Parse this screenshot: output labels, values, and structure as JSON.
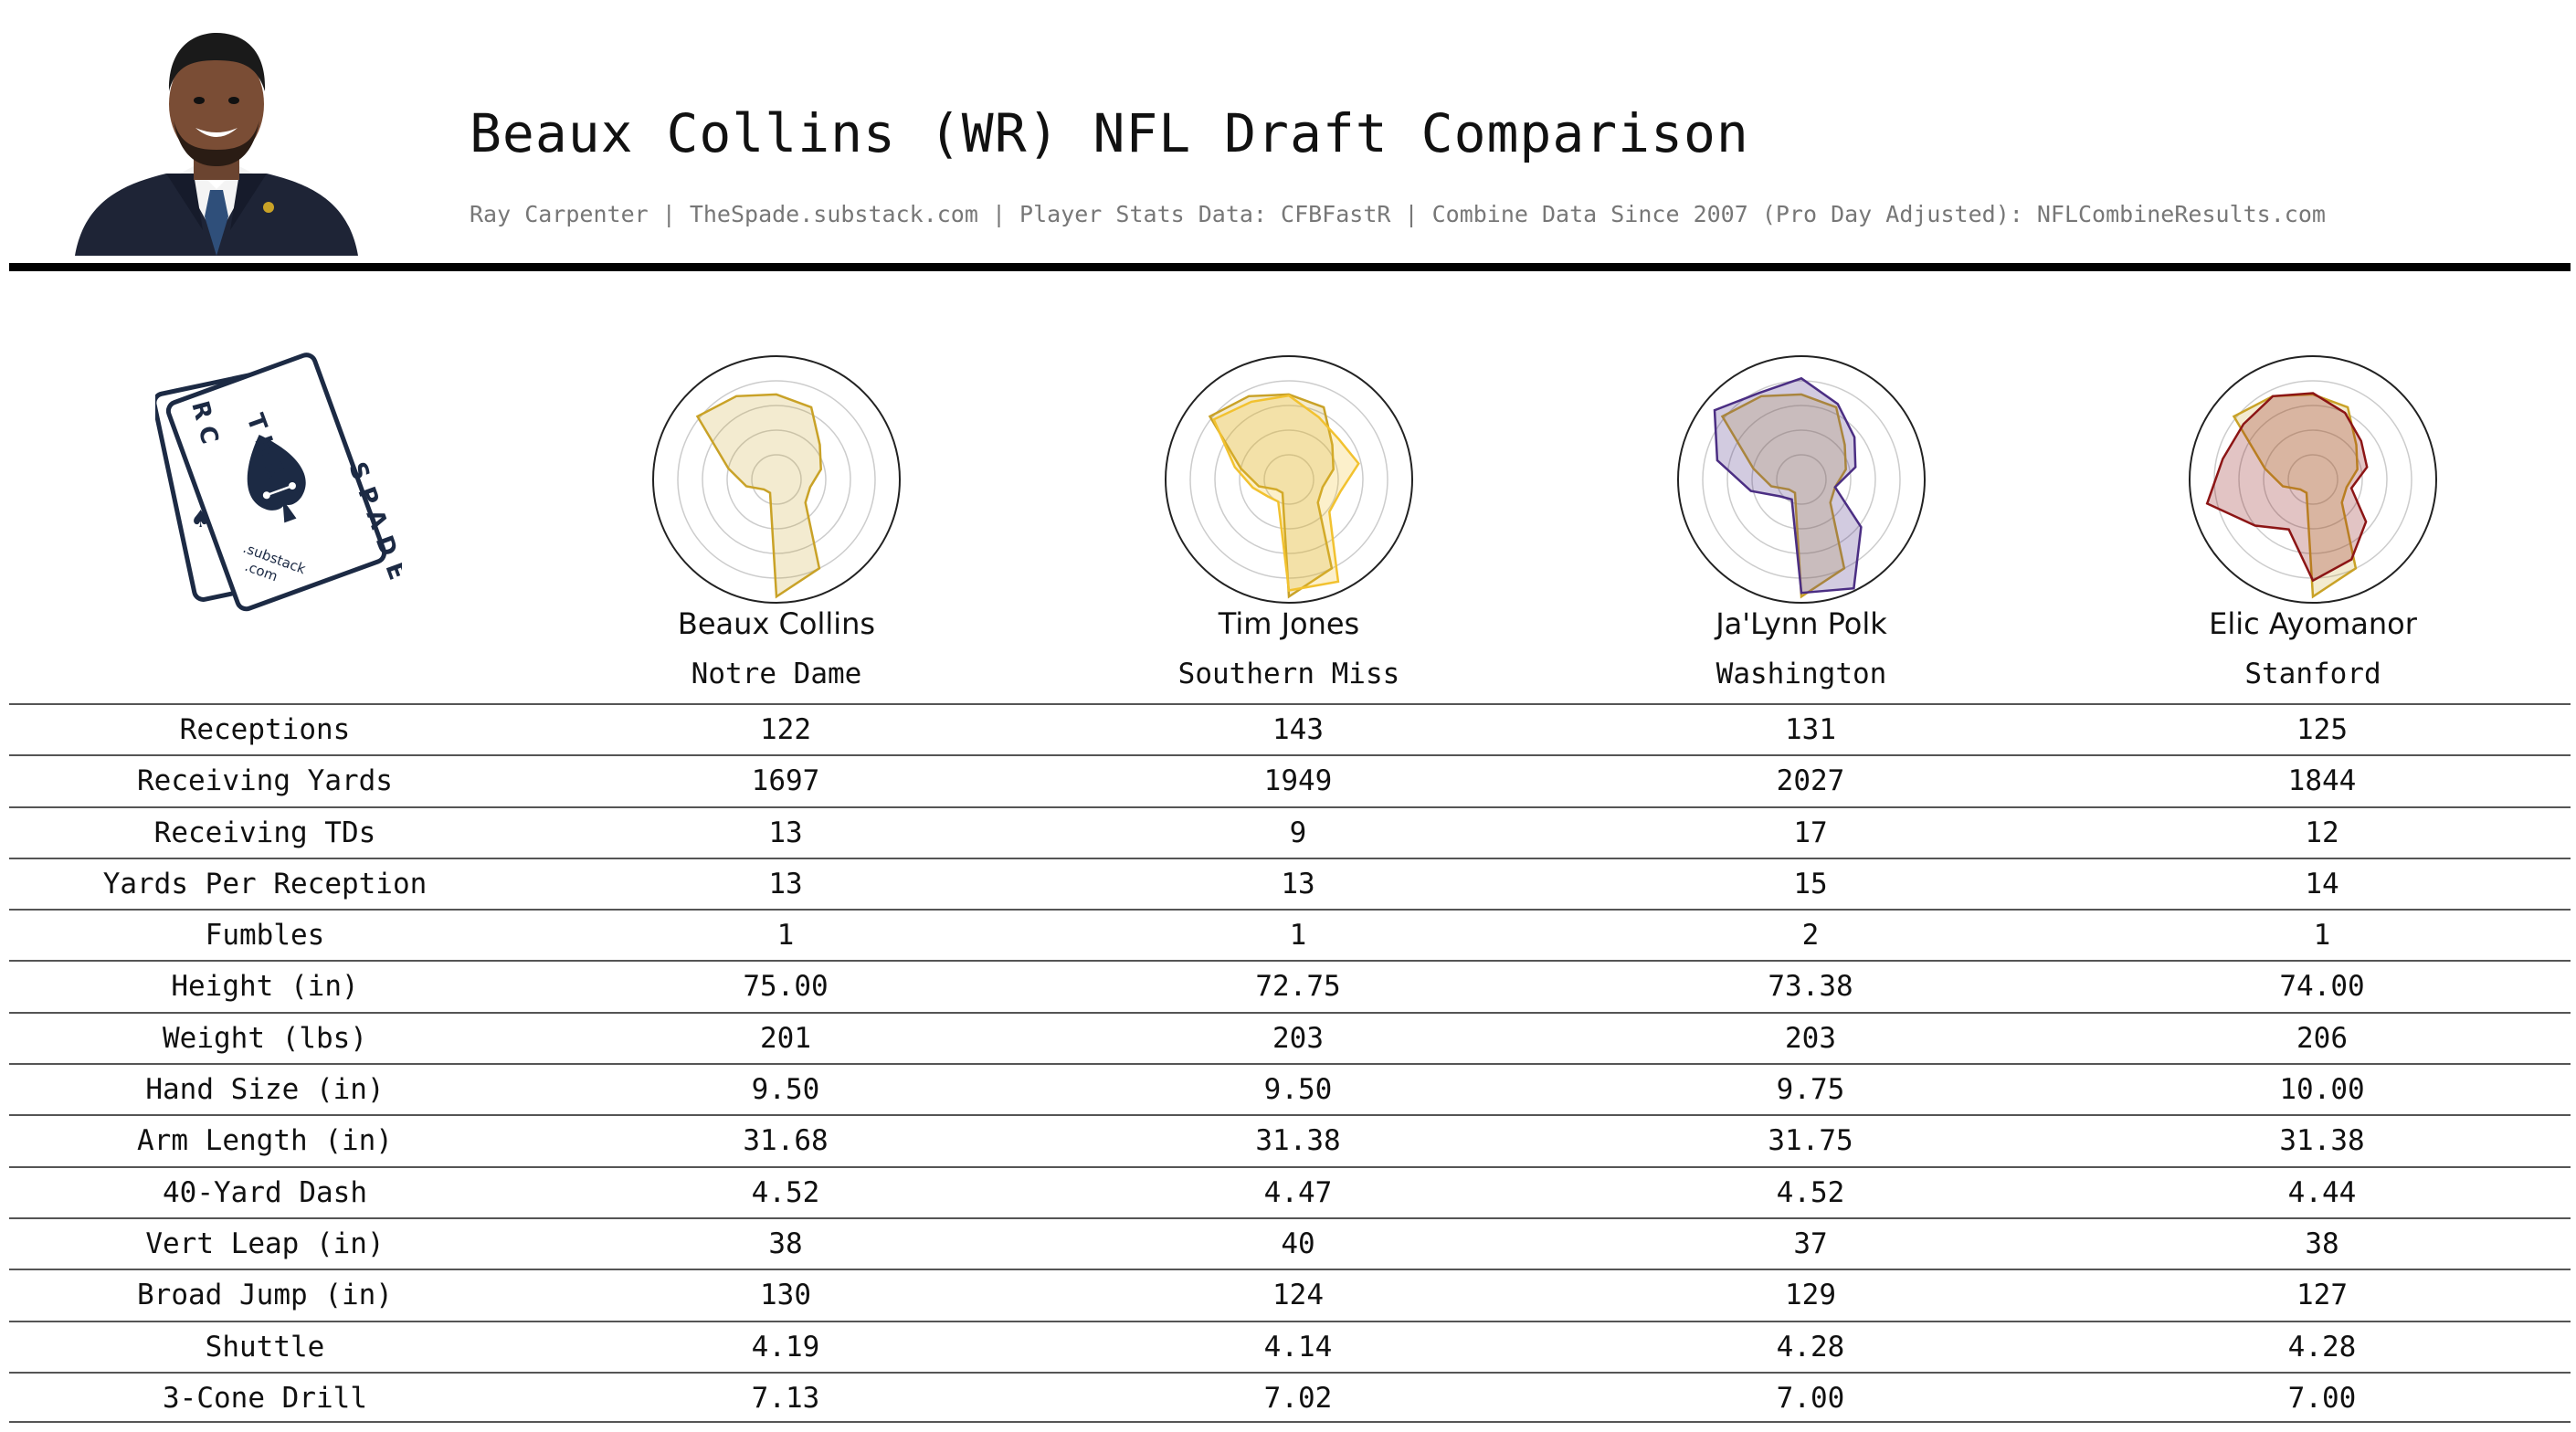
{
  "header": {
    "title": "Beaux Collins (WR) NFL Draft Comparison",
    "subtitle": "Ray Carpenter | TheSpade.substack.com | Player Stats Data: CFBFastR | Combine Data Since 2007 (Pro Day Adjusted): NFLCombineResults.com",
    "photo_icon": "player-headshot-icon"
  },
  "logo": {
    "icon": "spade-cards-logo-icon",
    "text_top": "THE",
    "text_left": "RC",
    "text_right": "SPADE",
    "text_small_1": ".substack",
    "text_small_2": ".com"
  },
  "colors": {
    "beaux": "#C9A227",
    "tim": "#F2C230",
    "jalynn": "#4B2E83",
    "elic": "#8C1515",
    "rule": "#000000"
  },
  "players": [
    {
      "name": "Beaux Collins",
      "school": "Notre Dame"
    },
    {
      "name": "Tim Jones",
      "school": "Southern Miss"
    },
    {
      "name": "Ja'Lynn Polk",
      "school": "Washington"
    },
    {
      "name": "Elic Ayomanor",
      "school": "Stanford"
    }
  ],
  "chart_data": {
    "type": "radar",
    "axes": 14,
    "rlim": [
      0,
      1
    ],
    "rings": [
      0.2,
      0.4,
      0.6,
      0.8
    ],
    "base": {
      "name": "Beaux Collins",
      "values": [
        0.69,
        0.65,
        0.45,
        0.37,
        0.28,
        0.3,
        0.8,
        0.95,
        0.12,
        0.13,
        0.25,
        0.4,
        0.82,
        0.75
      ]
    },
    "comparisons": [
      {
        "name": "Beaux Collins",
        "color": "#C9A227",
        "values": [
          0.69,
          0.65,
          0.45,
          0.37,
          0.28,
          0.3,
          0.8,
          0.95,
          0.12,
          0.13,
          0.25,
          0.4,
          0.82,
          0.75
        ]
      },
      {
        "name": "Tim Jones",
        "color": "#F2C230",
        "values": [
          0.68,
          0.56,
          0.52,
          0.58,
          0.43,
          0.42,
          0.92,
          0.9,
          0.2,
          0.22,
          0.3,
          0.45,
          0.78,
          0.7
        ]
      },
      {
        "name": "Ja'Lynn Polk",
        "color": "#4B2E83",
        "values": [
          0.82,
          0.68,
          0.55,
          0.45,
          0.28,
          0.62,
          0.98,
          0.92,
          0.18,
          0.22,
          0.42,
          0.7,
          0.9,
          0.78
        ]
      },
      {
        "name": "Elic Ayomanor",
        "color": "#8C1515",
        "values": [
          0.7,
          0.6,
          0.5,
          0.45,
          0.32,
          0.55,
          0.72,
          0.82,
          0.45,
          0.6,
          0.88,
          0.75,
          0.72,
          0.75
        ]
      }
    ]
  },
  "table": {
    "rows": [
      {
        "label": "Receptions",
        "values": [
          "122",
          "143",
          "131",
          "125"
        ]
      },
      {
        "label": "Receiving Yards",
        "values": [
          "1697",
          "1949",
          "2027",
          "1844"
        ]
      },
      {
        "label": "Receiving TDs",
        "values": [
          "13",
          "9",
          "17",
          "12"
        ]
      },
      {
        "label": "Yards Per Reception",
        "values": [
          "13",
          "13",
          "15",
          "14"
        ]
      },
      {
        "label": "Fumbles",
        "values": [
          "1",
          "1",
          "2",
          "1"
        ]
      },
      {
        "label": "Height (in)",
        "values": [
          "75.00",
          "72.75",
          "73.38",
          "74.00"
        ]
      },
      {
        "label": "Weight (lbs)",
        "values": [
          "201",
          "203",
          "203",
          "206"
        ]
      },
      {
        "label": "Hand Size (in)",
        "values": [
          "9.50",
          "9.50",
          "9.75",
          "10.00"
        ]
      },
      {
        "label": "Arm Length (in)",
        "values": [
          "31.68",
          "31.38",
          "31.75",
          "31.38"
        ]
      },
      {
        "label": "40-Yard Dash",
        "values": [
          "4.52",
          "4.47",
          "4.52",
          "4.44"
        ]
      },
      {
        "label": "Vert Leap (in)",
        "values": [
          "38",
          "40",
          "37",
          "38"
        ]
      },
      {
        "label": "Broad Jump (in)",
        "values": [
          "130",
          "124",
          "129",
          "127"
        ]
      },
      {
        "label": "Shuttle",
        "values": [
          "4.19",
          "4.14",
          "4.28",
          "4.28"
        ]
      },
      {
        "label": "3-Cone Drill",
        "values": [
          "7.13",
          "7.02",
          "7.00",
          "7.00"
        ]
      }
    ]
  }
}
